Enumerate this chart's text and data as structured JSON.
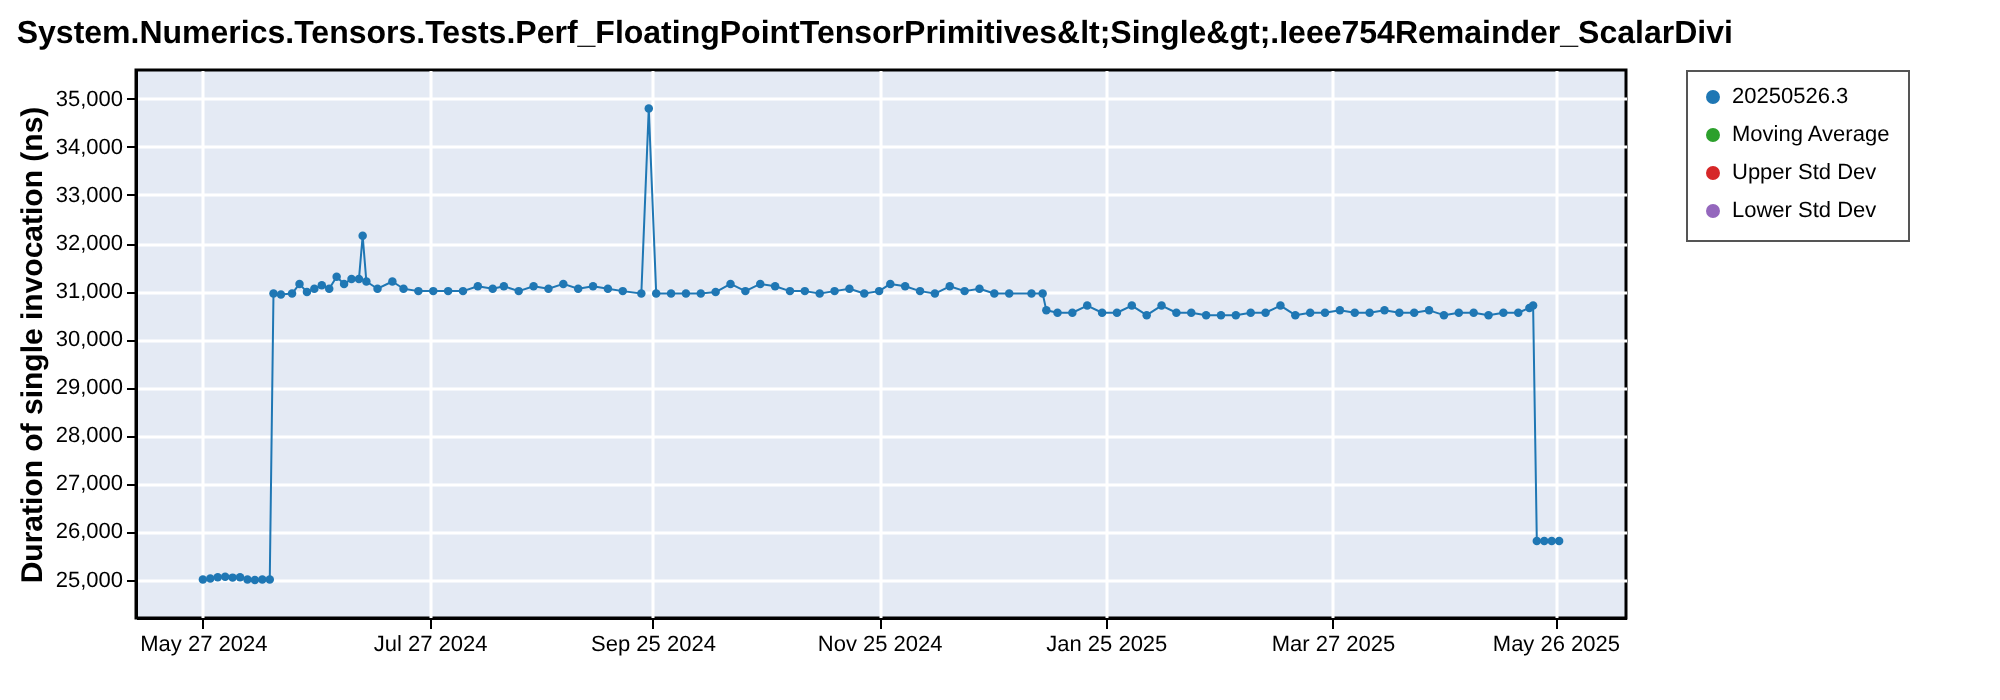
{
  "chart_data": {
    "type": "line",
    "title": "System.Numerics.Tensors.Tests.Perf_FloatingPointTensorPrimitives&lt;Single&gt;.Ieee754Remainder_ScalarDivi",
    "ylabel": "Duration of single invocation (ns)",
    "x": [
      "2024-05-27",
      "2024-05-29",
      "2024-05-31",
      "2024-06-02",
      "2024-06-04",
      "2024-06-06",
      "2024-06-08",
      "2024-06-10",
      "2024-06-12",
      "2024-06-14",
      "2024-06-15",
      "2024-06-17",
      "2024-06-20",
      "2024-06-22",
      "2024-06-24",
      "2024-06-26",
      "2024-06-28",
      "2024-06-30",
      "2024-07-02",
      "2024-07-04",
      "2024-07-06",
      "2024-07-08",
      "2024-07-09",
      "2024-07-10",
      "2024-07-13",
      "2024-07-17",
      "2024-07-20",
      "2024-07-24",
      "2024-07-28",
      "2024-08-01",
      "2024-08-05",
      "2024-08-09",
      "2024-08-13",
      "2024-08-16",
      "2024-08-20",
      "2024-08-24",
      "2024-08-28",
      "2024-09-01",
      "2024-09-05",
      "2024-09-09",
      "2024-09-13",
      "2024-09-17",
      "2024-09-22",
      "2024-09-24",
      "2024-09-26",
      "2024-09-30",
      "2024-10-04",
      "2024-10-08",
      "2024-10-12",
      "2024-10-16",
      "2024-10-20",
      "2024-10-24",
      "2024-10-28",
      "2024-11-01",
      "2024-11-05",
      "2024-11-09",
      "2024-11-13",
      "2024-11-17",
      "2024-11-21",
      "2024-11-25",
      "2024-11-28",
      "2024-12-02",
      "2024-12-06",
      "2024-12-10",
      "2024-12-14",
      "2024-12-18",
      "2024-12-22",
      "2024-12-26",
      "2024-12-30",
      "2025-01-05",
      "2025-01-08",
      "2025-01-09",
      "2025-01-12",
      "2025-01-16",
      "2025-01-20",
      "2025-01-24",
      "2025-01-28",
      "2025-02-01",
      "2025-02-05",
      "2025-02-09",
      "2025-02-13",
      "2025-02-17",
      "2025-02-21",
      "2025-02-25",
      "2025-03-01",
      "2025-03-05",
      "2025-03-09",
      "2025-03-13",
      "2025-03-17",
      "2025-03-21",
      "2025-03-25",
      "2025-03-29",
      "2025-04-02",
      "2025-04-06",
      "2025-04-10",
      "2025-04-14",
      "2025-04-18",
      "2025-04-22",
      "2025-04-26",
      "2025-04-30",
      "2025-05-04",
      "2025-05-08",
      "2025-05-12",
      "2025-05-16",
      "2025-05-19",
      "2025-05-20",
      "2025-05-21",
      "2025-05-23",
      "2025-05-25",
      "2025-05-27"
    ],
    "series": [
      {
        "name": "20250526.3",
        "color": "#1f77b4",
        "values": [
          25000,
          25020,
          25050,
          25060,
          25040,
          25050,
          25000,
          24990,
          25000,
          25000,
          30950,
          30930,
          30950,
          31150,
          30980,
          31050,
          31120,
          31050,
          31300,
          31150,
          31250,
          31250,
          32150,
          31200,
          31050,
          31200,
          31050,
          31000,
          31000,
          31000,
          31000,
          31100,
          31050,
          31100,
          31000,
          31100,
          31050,
          31150,
          31050,
          31100,
          31050,
          31000,
          30950,
          34800,
          30950,
          30950,
          30950,
          30950,
          30980,
          31150,
          31000,
          31150,
          31100,
          31000,
          31000,
          30950,
          31000,
          31050,
          30950,
          31000,
          31150,
          31100,
          31000,
          30950,
          31100,
          31000,
          31050,
          30950,
          30950,
          30950,
          30950,
          30600,
          30550,
          30550,
          30700,
          30550,
          30550,
          30700,
          30500,
          30700,
          30550,
          30550,
          30500,
          30500,
          30500,
          30550,
          30550,
          30700,
          30500,
          30550,
          30550,
          30600,
          30550,
          30550,
          30600,
          30550,
          30550,
          30600,
          30500,
          30550,
          30550,
          30500,
          30550,
          30550,
          30650,
          30700,
          25800,
          25800,
          25800,
          25800
        ]
      },
      {
        "name": "Moving Average",
        "color": "#2ca02c",
        "values": [
          null,
          null,
          null,
          null,
          null,
          null,
          null,
          null,
          null,
          null,
          null,
          null,
          null,
          null,
          null,
          null,
          null,
          null,
          null,
          null,
          null,
          null,
          null,
          null,
          null,
          null,
          null,
          null,
          null,
          null,
          null,
          null,
          null,
          null,
          null,
          null,
          null,
          null,
          null,
          null,
          null,
          null,
          null,
          null,
          null,
          null,
          null,
          null,
          null,
          null,
          null,
          null,
          null,
          null,
          null,
          null,
          null,
          null,
          null,
          null,
          null,
          null,
          null,
          null,
          null,
          null,
          null,
          null,
          null,
          null,
          null,
          null,
          null,
          null,
          null,
          null,
          null,
          null,
          null,
          null,
          null,
          null,
          null,
          null,
          null,
          null,
          null,
          null,
          null,
          null,
          null,
          null,
          null,
          null,
          null,
          null,
          null,
          null,
          null,
          null,
          null,
          null,
          null,
          null,
          null,
          null,
          null,
          null,
          null,
          null
        ]
      },
      {
        "name": "Upper Std Dev",
        "color": "#d62728",
        "values": [
          null,
          null,
          null,
          null,
          null,
          null,
          null,
          null,
          null,
          null,
          null,
          null,
          null,
          null,
          null,
          null,
          null,
          null,
          null,
          null,
          null,
          null,
          null,
          null,
          null,
          null,
          null,
          null,
          null,
          null,
          null,
          null,
          null,
          null,
          null,
          null,
          null,
          null,
          null,
          null,
          null,
          null,
          null,
          null,
          null,
          null,
          null,
          null,
          null,
          null,
          null,
          null,
          null,
          null,
          null,
          null,
          null,
          null,
          null,
          null,
          null,
          null,
          null,
          null,
          null,
          null,
          null,
          null,
          null,
          null,
          null,
          null,
          null,
          null,
          null,
          null,
          null,
          null,
          null,
          null,
          null,
          null,
          null,
          null,
          null,
          null,
          null,
          null,
          null,
          null,
          null,
          null,
          null,
          null,
          null,
          null,
          null,
          null,
          null,
          null,
          null,
          null,
          null,
          null,
          null,
          null,
          null,
          null,
          null,
          null
        ]
      },
      {
        "name": "Lower Std Dev",
        "color": "#9467bd",
        "values": [
          null,
          null,
          null,
          null,
          null,
          null,
          null,
          null,
          null,
          null,
          null,
          null,
          null,
          null,
          null,
          null,
          null,
          null,
          null,
          null,
          null,
          null,
          null,
          null,
          null,
          null,
          null,
          null,
          null,
          null,
          null,
          null,
          null,
          null,
          null,
          null,
          null,
          null,
          null,
          null,
          null,
          null,
          null,
          null,
          null,
          null,
          null,
          null,
          null,
          null,
          null,
          null,
          null,
          null,
          null,
          null,
          null,
          null,
          null,
          null,
          null,
          null,
          null,
          null,
          null,
          null,
          null,
          null,
          null,
          null,
          null,
          null,
          null,
          null,
          null,
          null,
          null,
          null,
          null,
          null,
          null,
          null,
          null,
          null,
          null,
          null,
          null,
          null,
          null,
          null,
          null,
          null,
          null,
          null,
          null,
          null,
          null,
          null,
          null,
          null,
          null,
          null,
          null,
          null,
          null,
          null,
          null,
          null,
          null,
          null
        ]
      }
    ],
    "xlim": [
      "2024-05-09",
      "2025-06-14"
    ],
    "xticks": [
      {
        "value": "2024-05-27",
        "label": "May 27 2024"
      },
      {
        "value": "2024-07-27",
        "label": "Jul 27 2024"
      },
      {
        "value": "2024-09-25",
        "label": "Sep 25 2024"
      },
      {
        "value": "2024-11-25",
        "label": "Nov 25 2024"
      },
      {
        "value": "2025-01-25",
        "label": "Jan 25 2025"
      },
      {
        "value": "2025-03-27",
        "label": "Mar 27 2025"
      },
      {
        "value": "2025-05-26",
        "label": "May 26 2025"
      }
    ],
    "ylim": [
      24200,
      35600
    ],
    "yticks": [
      {
        "value": 25000,
        "label": "25,000"
      },
      {
        "value": 26000,
        "label": "26,000"
      },
      {
        "value": 27000,
        "label": "27,000"
      },
      {
        "value": 28000,
        "label": "28,000"
      },
      {
        "value": 29000,
        "label": "29,000"
      },
      {
        "value": 30000,
        "label": "30,000"
      },
      {
        "value": 31000,
        "label": "31,000"
      },
      {
        "value": 32000,
        "label": "32,000"
      },
      {
        "value": 33000,
        "label": "33,000"
      },
      {
        "value": 34000,
        "label": "34,000"
      },
      {
        "value": 35000,
        "label": "35,000"
      }
    ],
    "grid": true,
    "legend": "right",
    "marker": "circle",
    "line_style": "solid"
  }
}
